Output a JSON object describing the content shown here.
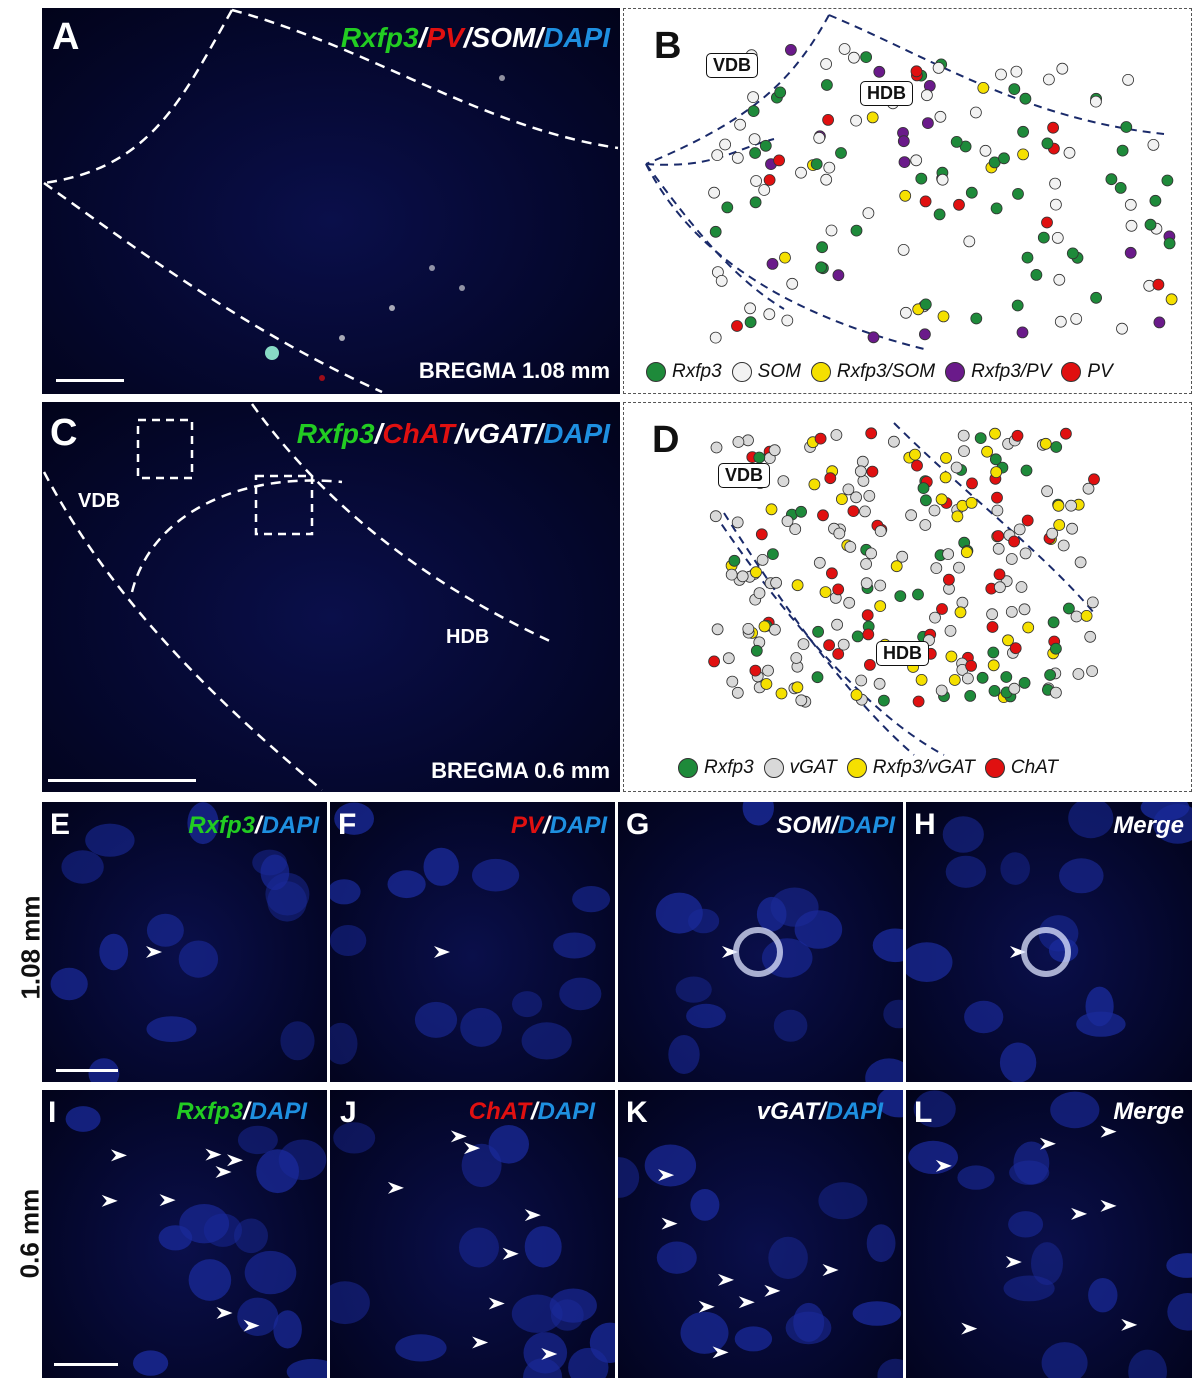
{
  "panels": {
    "A": {
      "label": "A",
      "markers": [
        "Rxfp3",
        "/",
        "PV",
        "/",
        "SOM",
        "/",
        "DAPI"
      ],
      "bregma": "BREGMA 1.08 mm"
    },
    "B": {
      "label": "B",
      "regions": [
        "VDB",
        "HDB"
      ],
      "legend": [
        {
          "name": "Rxfp3",
          "color": "#1e8a3a"
        },
        {
          "name": "SOM",
          "color": "#f2f2f2"
        },
        {
          "name": "Rxfp3/SOM",
          "color": "#f5e000"
        },
        {
          "name": "Rxfp3/PV",
          "color": "#6a1a8a"
        },
        {
          "name": "PV",
          "color": "#e01010"
        }
      ]
    },
    "C": {
      "label": "C",
      "markers": [
        "Rxfp3",
        "/",
        "ChAT",
        "/",
        "vGAT",
        "/",
        "DAPI"
      ],
      "bregma": "BREGMA 0.6 mm",
      "regions": [
        "VDB",
        "HDB"
      ]
    },
    "D": {
      "label": "D",
      "regions": [
        "VDB",
        "HDB"
      ],
      "legend": [
        {
          "name": "Rxfp3",
          "color": "#1e8a3a"
        },
        {
          "name": "vGAT",
          "color": "#d9d9d9"
        },
        {
          "name": "Rxfp3/vGAT",
          "color": "#f5e000"
        },
        {
          "name": "ChAT",
          "color": "#e01010"
        }
      ]
    },
    "E": {
      "label": "E",
      "markers": [
        "Rxfp3",
        "/",
        "DAPI"
      ]
    },
    "F": {
      "label": "F",
      "markers": [
        "PV",
        "/",
        "DAPI"
      ]
    },
    "G": {
      "label": "G",
      "markers": [
        "SOM",
        "/",
        "DAPI"
      ]
    },
    "H": {
      "label": "H",
      "markers": [
        "Merge"
      ]
    },
    "I": {
      "label": "I",
      "markers": [
        "Rxfp3",
        "/",
        "DAPI"
      ]
    },
    "J": {
      "label": "J",
      "markers": [
        "ChAT",
        "/",
        "DAPI"
      ]
    },
    "K": {
      "label": "K",
      "markers": [
        "vGAT",
        "/",
        "DAPI"
      ]
    },
    "L": {
      "label": "L",
      "markers": [
        "Merge"
      ]
    }
  },
  "row_labels": [
    "1.08 mm",
    "0.6 mm"
  ],
  "colors": {
    "rxfp3": "#22cc22",
    "pv": "#e01010",
    "chat": "#e01010",
    "som": "#ffffff",
    "vgat": "#ffffff",
    "dapi": "#1e8fe0"
  }
}
